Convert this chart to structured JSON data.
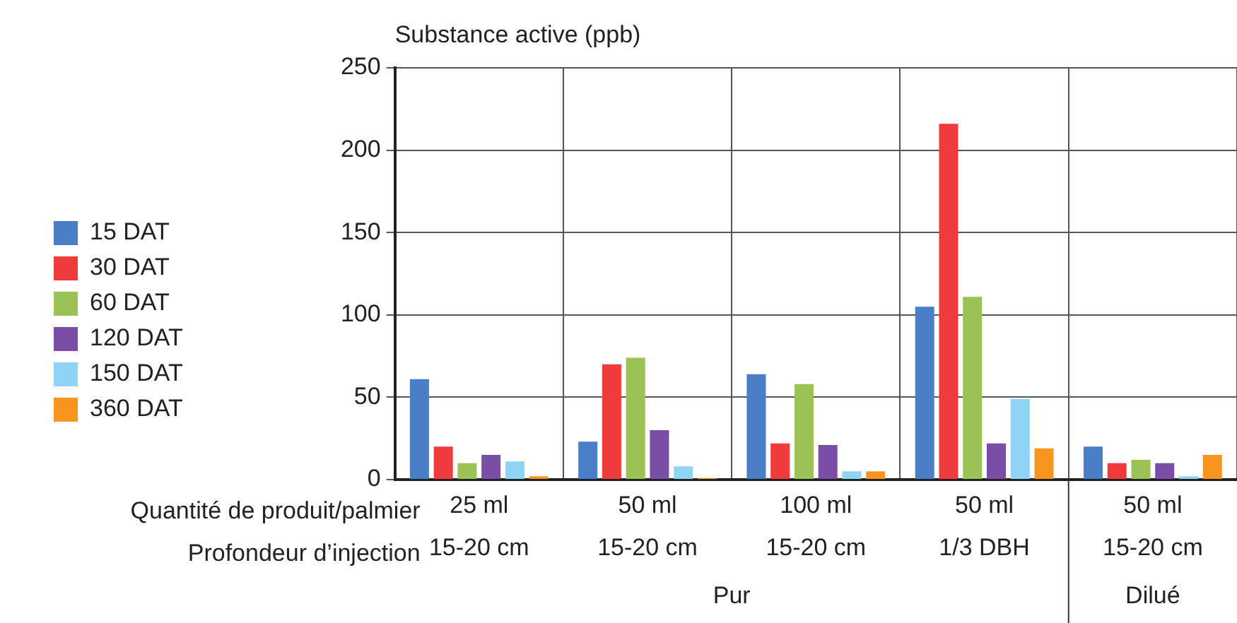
{
  "chart_data": {
    "type": "bar",
    "ylabel": "Substance active (ppb)",
    "categories": [
      "25 ml\n15-20 cm",
      "50 ml\n15-20 cm",
      "100 ml\n15-20 cm",
      "50 ml\n1/3 DBH",
      "50 ml\n15-20 cm"
    ],
    "series": [
      {
        "name": "15 DAT",
        "color": "#4a7fc8",
        "values": [
          61,
          23,
          64,
          105,
          20
        ]
      },
      {
        "name": "30 DAT",
        "color": "#ef3b3b",
        "values": [
          20,
          70,
          22,
          216,
          10
        ]
      },
      {
        "name": "60 DAT",
        "color": "#9bc254",
        "values": [
          10,
          74,
          58,
          111,
          12
        ]
      },
      {
        "name": "120 DAT",
        "color": "#7a4ea6",
        "values": [
          15,
          30,
          21,
          22,
          10
        ]
      },
      {
        "name": "150 DAT",
        "color": "#8fd3f5",
        "values": [
          11,
          8,
          5,
          49,
          2
        ]
      },
      {
        "name": "360 DAT",
        "color": "#f7951e",
        "values": [
          2,
          1,
          5,
          19,
          15
        ]
      }
    ],
    "ylim": [
      0,
      250
    ],
    "yticks": [
      0,
      50,
      100,
      150,
      200,
      250
    ],
    "grid": true,
    "legend": "left",
    "annotations": [
      "Quantité de produit/palmier",
      "Profondeur d’injection",
      "Pur",
      "Dilué"
    ]
  }
}
